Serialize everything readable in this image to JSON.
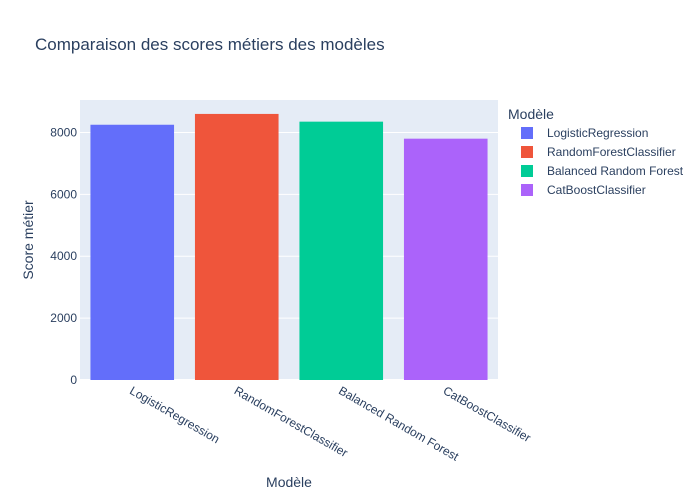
{
  "chart_data": {
    "type": "bar",
    "title": "Comparaison des scores métiers des modèles",
    "xlabel": "Modèle",
    "ylabel": "Score métier",
    "categories": [
      "LogisticRegression",
      "RandomForestClassifier",
      "Balanced Random Forest",
      "CatBoostClassifier"
    ],
    "values": [
      8250,
      8600,
      8350,
      7800
    ],
    "colors": [
      "#636efa",
      "#EF553B",
      "#00cc96",
      "#ab63fa"
    ],
    "ylim": [
      0,
      9050
    ],
    "yticks": [
      0,
      2000,
      4000,
      6000,
      8000
    ],
    "grid": true,
    "legend": {
      "title": "Modèle",
      "position": "right",
      "entries": [
        "LogisticRegression",
        "RandomForestClassifier",
        "Balanced Random Forest",
        "CatBoostClassifier"
      ]
    },
    "plot_bg": "#e5ecf6"
  }
}
